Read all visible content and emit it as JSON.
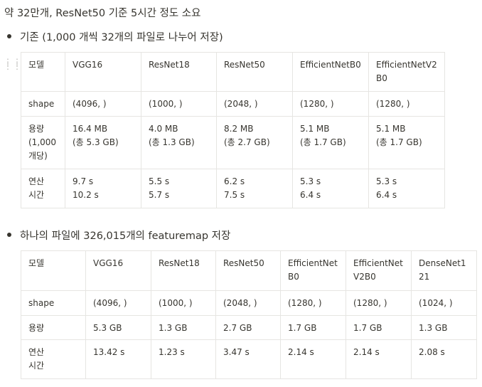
{
  "intro": "약 32만개, ResNet50 기준 5시간 정도 소요",
  "section1": {
    "bullet": "기존 (1,000 개씩 32개의 파일로 나누어 저장)",
    "headers": [
      "모델",
      "VGG16",
      "ResNet18",
      "ResNet50",
      "EfficientNetB0",
      "EfficientNetV2B0"
    ],
    "rows": [
      [
        "shape",
        "(4096, )",
        "(1000, )",
        "(2048, )",
        "(1280, )",
        "(1280, )"
      ],
      [
        "용량\n(1,000\n개당)",
        "16.4 MB\n(총 5.3 GB)",
        "4.0 MB\n(총 1.3 GB)",
        "8.2 MB\n(총 2.7 GB)",
        "5.1 MB\n(총 1.7 GB)",
        "5.1 MB\n(총 1.7 GB)"
      ],
      [
        "연산\n시간",
        "9.7 s\n10.2 s",
        "5.5 s\n5.7 s",
        "6.2 s\n7.5 s",
        "5.3 s\n6.4 s",
        "5.3 s\n6.4 s"
      ]
    ]
  },
  "section2": {
    "bullet": "하나의 파일에 326,015개의 featuremap 저장",
    "headers": [
      "모델",
      "VGG16",
      "ResNet18",
      "ResNet50",
      "EfficientNetB0",
      "EfficientNetV2B0",
      "DenseNet121"
    ],
    "rows": [
      [
        "shape",
        "(4096, )",
        "(1000, )",
        "(2048, )",
        "(1280, )",
        "(1280, )",
        "(1024, )"
      ],
      [
        "용량",
        "5.3 GB",
        "1.3 GB",
        "2.7 GB",
        "1.7 GB",
        "1.7 GB",
        "1.3 GB"
      ],
      [
        "연산\n시간",
        "13.42 s",
        "1.23 s",
        "3.47 s",
        "2.14 s",
        "2.14 s",
        "2.08 s"
      ]
    ]
  }
}
